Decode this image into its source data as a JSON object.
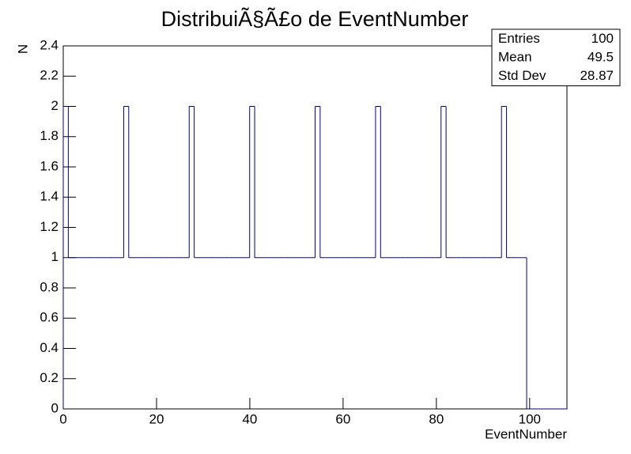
{
  "chart_data": {
    "type": "histogram",
    "title": "DistribuiÃ§Ã£o de EventNumber",
    "x_label": "EventNumber",
    "y_label": "N",
    "color": "#000080",
    "bins": [
      0,
      1.08,
      2.16,
      3.24,
      4.32,
      5.4,
      6.48,
      7.56,
      8.64,
      9.72,
      10.8,
      11.88,
      12.96,
      14.04,
      15.12,
      16.2,
      17.28,
      18.36,
      19.44,
      20.52,
      21.6,
      22.68,
      23.76,
      24.84,
      25.92,
      27,
      28.08,
      29.16,
      30.24,
      31.32,
      32.4,
      33.48,
      34.56,
      35.64,
      36.72,
      37.8,
      38.88,
      39.96,
      41.04,
      42.12,
      43.2,
      44.28,
      45.36,
      46.44,
      47.52,
      48.6,
      49.68,
      50.76,
      51.84,
      52.92,
      54,
      55.08,
      56.16,
      57.24,
      58.32,
      59.4,
      60.48,
      61.56,
      62.64,
      63.72,
      64.8,
      65.88,
      66.96,
      68.04,
      69.12,
      70.2,
      71.28,
      72.36,
      73.44,
      74.52,
      75.6,
      76.68,
      77.76,
      78.84,
      79.92,
      81,
      82.08,
      83.16,
      84.24,
      85.32,
      86.4,
      87.48,
      88.56,
      89.64,
      90.72,
      91.8,
      92.88,
      93.96,
      95.04,
      96.12,
      97.2,
      98.28,
      99.36,
      100.44,
      101.52,
      102.6,
      103.68,
      104.76,
      105.84,
      106.92,
      108
    ],
    "counts": [
      2,
      1,
      1,
      1,
      1,
      1,
      1,
      1,
      1,
      1,
      1,
      1,
      2,
      1,
      1,
      1,
      1,
      1,
      1,
      1,
      1,
      1,
      1,
      1,
      1,
      2,
      1,
      1,
      1,
      1,
      1,
      1,
      1,
      1,
      1,
      1,
      1,
      2,
      1,
      1,
      1,
      1,
      1,
      1,
      1,
      1,
      1,
      1,
      1,
      1,
      2,
      1,
      1,
      1,
      1,
      1,
      1,
      1,
      1,
      1,
      1,
      1,
      2,
      1,
      1,
      1,
      1,
      1,
      1,
      1,
      1,
      1,
      1,
      1,
      1,
      2,
      1,
      1,
      1,
      1,
      1,
      1,
      1,
      1,
      1,
      1,
      1,
      2,
      1,
      1,
      1,
      1,
      0,
      0,
      0,
      0,
      0,
      0,
      0,
      0
    ],
    "xlim": [
      0,
      108
    ],
    "ylim": [
      0,
      2.4
    ],
    "xticks": [
      0,
      20,
      40,
      60,
      80,
      100
    ],
    "yticks": [
      0,
      0.2,
      0.4,
      0.6,
      0.8,
      1,
      1.2,
      1.4,
      1.6,
      1.8,
      2,
      2.2,
      2.4
    ],
    "stats": [
      {
        "label": "Entries",
        "value": 100
      },
      {
        "label": "Mean",
        "value": 49.5
      },
      {
        "label": "Std Dev",
        "value": 28.87
      }
    ]
  }
}
